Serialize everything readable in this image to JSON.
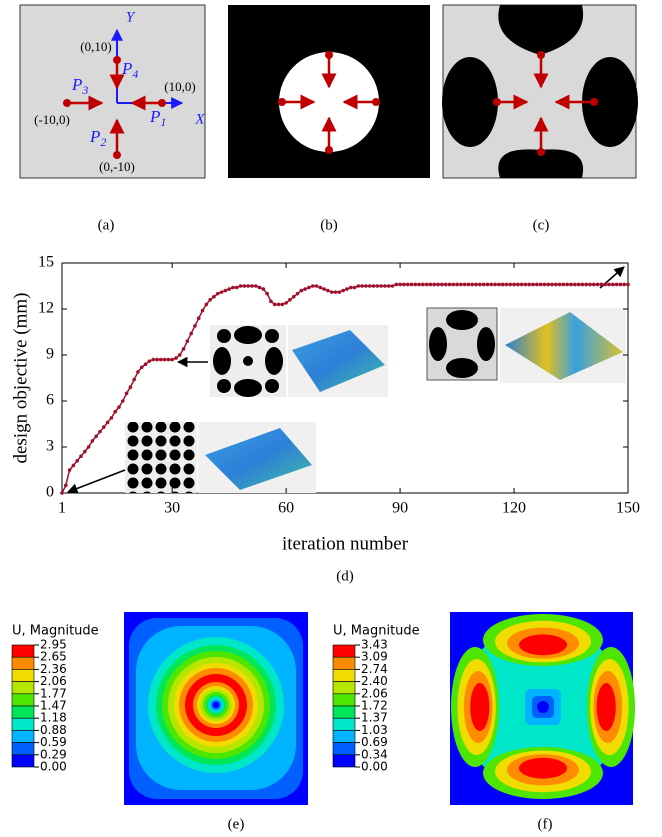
{
  "panels": {
    "a": {
      "label": "(a)",
      "axis_x": "X",
      "axis_y": "Y",
      "points": [
        {
          "name": "P",
          "sub": "4",
          "coord": "(0,10)"
        },
        {
          "name": "P",
          "sub": "3",
          "coord": "(-10,0)"
        },
        {
          "name": "P",
          "sub": "1",
          "coord": "(10,0)"
        },
        {
          "name": "P",
          "sub": "2",
          "coord": "(0,-10)"
        }
      ]
    },
    "b": {
      "label": "(b)"
    },
    "c": {
      "label": "(c)"
    },
    "d": {
      "label": "(d)"
    },
    "e": {
      "label": "(e)",
      "legend_title": "U, Magnitude",
      "legend_values": [
        "2.95",
        "2.65",
        "2.36",
        "2.06",
        "1.77",
        "1.47",
        "1.18",
        "0.88",
        "0.59",
        "0.29",
        "0.00"
      ]
    },
    "f": {
      "label": "(f)",
      "legend_title": "U, Magnitude",
      "legend_values": [
        "3.43",
        "3.09",
        "2.74",
        "2.40",
        "2.06",
        "1.72",
        "1.37",
        "1.03",
        "0.69",
        "0.34",
        "0.00"
      ]
    }
  },
  "chart_data": {
    "type": "line",
    "x_label": "iteration number",
    "y_label": "design objective (mm)",
    "color": "#a0102a",
    "xlim": [
      1,
      150
    ],
    "xticks": [
      1,
      30,
      60,
      90,
      120,
      150
    ],
    "ylim": [
      0,
      15
    ],
    "yticks": [
      0,
      3,
      6,
      9,
      12,
      15
    ],
    "x": [
      1,
      2,
      3,
      4,
      5,
      6,
      7,
      8,
      9,
      10,
      11,
      12,
      13,
      14,
      15,
      16,
      17,
      18,
      19,
      20,
      21,
      22,
      23,
      24,
      25,
      26,
      27,
      28,
      29,
      30,
      31,
      32,
      33,
      34,
      35,
      36,
      37,
      38,
      39,
      40,
      41,
      42,
      43,
      44,
      45,
      46,
      47,
      48,
      49,
      50,
      51,
      52,
      53,
      54,
      55,
      56,
      57,
      58,
      59,
      60,
      61,
      62,
      63,
      64,
      65,
      66,
      67,
      68,
      69,
      70,
      71,
      72,
      73,
      74,
      75,
      76,
      77,
      78,
      79,
      80,
      81,
      82,
      83,
      84,
      85,
      86,
      87,
      88,
      89,
      90,
      91,
      92,
      93,
      94,
      95,
      96,
      97,
      98,
      99,
      100,
      101,
      102,
      103,
      104,
      105,
      106,
      107,
      108,
      109,
      110,
      111,
      112,
      113,
      114,
      115,
      116,
      117,
      118,
      119,
      120,
      121,
      122,
      123,
      124,
      125,
      126,
      127,
      128,
      129,
      130,
      131,
      132,
      133,
      134,
      135,
      136,
      137,
      138,
      139,
      140,
      141,
      142,
      143,
      144,
      145,
      146,
      147,
      148,
      149,
      150
    ],
    "values": [
      0,
      0.5,
      1.5,
      1.8,
      2.1,
      2.4,
      2.7,
      3.0,
      3.4,
      3.7,
      4.0,
      4.3,
      4.6,
      4.9,
      5.3,
      5.6,
      6.0,
      6.5,
      6.9,
      7.4,
      7.9,
      8.2,
      8.4,
      8.6,
      8.7,
      8.7,
      8.7,
      8.7,
      8.7,
      8.7,
      8.8,
      9.0,
      9.4,
      9.9,
      10.4,
      10.9,
      11.4,
      11.9,
      12.3,
      12.6,
      12.8,
      13.0,
      13.1,
      13.2,
      13.3,
      13.4,
      13.4,
      13.5,
      13.5,
      13.5,
      13.5,
      13.5,
      13.4,
      13.3,
      13.0,
      12.5,
      12.3,
      12.3,
      12.3,
      12.4,
      12.6,
      12.8,
      13.0,
      13.2,
      13.3,
      13.4,
      13.5,
      13.5,
      13.4,
      13.3,
      13.2,
      13.1,
      13.1,
      13.1,
      13.2,
      13.3,
      13.4,
      13.4,
      13.5,
      13.5,
      13.5,
      13.5,
      13.5,
      13.5,
      13.5,
      13.5,
      13.5,
      13.5,
      13.6,
      13.6,
      13.6,
      13.6,
      13.6,
      13.6,
      13.6,
      13.6,
      13.6,
      13.6,
      13.6,
      13.6,
      13.6,
      13.6,
      13.6,
      13.6,
      13.6,
      13.6,
      13.6,
      13.6,
      13.6,
      13.6,
      13.6,
      13.6,
      13.6,
      13.6,
      13.6,
      13.6,
      13.6,
      13.6,
      13.6,
      13.6,
      13.6,
      13.6,
      13.6,
      13.6,
      13.6,
      13.6,
      13.6,
      13.6,
      13.6,
      13.6,
      13.6,
      13.6,
      13.6,
      13.6,
      13.6,
      13.6,
      13.6,
      13.6,
      13.6,
      13.6,
      13.6,
      13.6,
      13.6,
      13.6,
      13.6,
      13.6,
      13.6,
      13.6,
      13.6,
      13.6
    ]
  }
}
